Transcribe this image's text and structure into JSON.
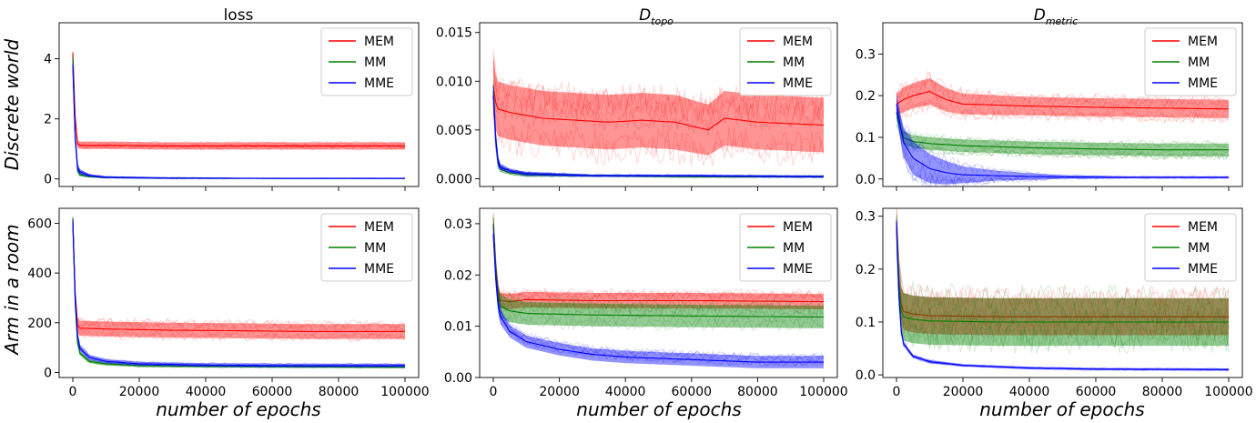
{
  "figure": {
    "x_label": "number of epochs",
    "row_labels": [
      "Discrete world",
      "Arm in a room"
    ],
    "column_titles": [
      {
        "main": "loss",
        "sub": ""
      },
      {
        "main": "D",
        "sub": "topo"
      },
      {
        "main": "D",
        "sub": "metric"
      }
    ],
    "x_ticks": [
      "0",
      "20000",
      "40000",
      "60000",
      "80000",
      "100000"
    ]
  },
  "chart_data": [
    {
      "type": "line",
      "row": 0,
      "col": 0,
      "title": "loss",
      "row_label": "Discrete world",
      "xlabel": "",
      "xlim": [
        0,
        100000
      ],
      "ylim": [
        -0.25,
        5.2
      ],
      "yticks": [
        0,
        2,
        4
      ],
      "ytick_labels": [
        "0",
        "2",
        "4"
      ],
      "legend": "top-right",
      "series": [
        {
          "name": "MEM",
          "color": "#ff0000",
          "x": [
            0,
            1000,
            2000,
            10000,
            30000,
            50000,
            70000,
            100000
          ],
          "y": [
            4.2,
            1.2,
            1.12,
            1.12,
            1.1,
            1.1,
            1.1,
            1.1
          ],
          "band": [
            0.12,
            0.12,
            0.12,
            0.12,
            0.12,
            0.12,
            0.12,
            0.12
          ]
        },
        {
          "name": "MM",
          "color": "#008000",
          "x": [
            0,
            1000,
            2000,
            5000,
            10000,
            30000,
            60000,
            100000
          ],
          "y": [
            4.0,
            0.4,
            0.15,
            0.08,
            0.05,
            0.03,
            0.02,
            0.02
          ],
          "band": [
            0.2,
            0.1,
            0.06,
            0.03,
            0.02,
            0.02,
            0.01,
            0.01
          ]
        },
        {
          "name": "MME",
          "color": "#0000ff",
          "x": [
            0,
            1000,
            2000,
            5000,
            10000,
            30000,
            60000,
            100000
          ],
          "y": [
            3.8,
            0.5,
            0.25,
            0.12,
            0.06,
            0.03,
            0.02,
            0.02
          ],
          "band": [
            0.25,
            0.15,
            0.08,
            0.04,
            0.03,
            0.02,
            0.01,
            0.01
          ]
        }
      ]
    },
    {
      "type": "line",
      "row": 0,
      "col": 1,
      "title": "D topo",
      "xlabel": "",
      "xlim": [
        0,
        100000
      ],
      "ylim": [
        -0.0008,
        0.016
      ],
      "yticks": [
        0,
        0.005,
        0.01,
        0.015
      ],
      "ytick_labels": [
        "0.000",
        "0.005",
        "0.010",
        "0.015"
      ],
      "legend": "top-right",
      "series": [
        {
          "name": "MEM",
          "color": "#ff0000",
          "x": [
            0,
            1000,
            5000,
            15000,
            25000,
            35000,
            45000,
            55000,
            65000,
            70000,
            80000,
            100000
          ],
          "y": [
            0.0095,
            0.0072,
            0.0068,
            0.0062,
            0.006,
            0.0058,
            0.006,
            0.0058,
            0.005,
            0.0062,
            0.0058,
            0.0055
          ],
          "band": [
            0.003,
            0.0028,
            0.0028,
            0.0028,
            0.0028,
            0.0028,
            0.0028,
            0.0028,
            0.0026,
            0.0028,
            0.0028,
            0.0028
          ]
        },
        {
          "name": "MM",
          "color": "#008000",
          "x": [
            0,
            1000,
            2000,
            5000,
            10000,
            30000,
            60000,
            100000
          ],
          "y": [
            0.009,
            0.002,
            0.001,
            0.0006,
            0.0004,
            0.0003,
            0.0002,
            0.0002
          ],
          "band": [
            0.001,
            0.0006,
            0.0003,
            0.0002,
            0.0002,
            0.0001,
            0.0001,
            0.0001
          ]
        },
        {
          "name": "MME",
          "color": "#0000ff",
          "x": [
            0,
            1000,
            2000,
            5000,
            10000,
            30000,
            60000,
            100000
          ],
          "y": [
            0.0085,
            0.0022,
            0.0012,
            0.0008,
            0.0005,
            0.0003,
            0.0003,
            0.0002
          ],
          "band": [
            0.001,
            0.0006,
            0.0003,
            0.0002,
            0.0002,
            0.0001,
            0.0001,
            0.0001
          ]
        }
      ]
    },
    {
      "type": "line",
      "row": 0,
      "col": 2,
      "title": "D metric",
      "xlabel": "",
      "xlim": [
        0,
        100000
      ],
      "ylim": [
        -0.018,
        0.375
      ],
      "yticks": [
        0,
        0.1,
        0.2,
        0.3
      ],
      "ytick_labels": [
        "0.0",
        "0.1",
        "0.2",
        "0.3"
      ],
      "legend": "top-right",
      "series": [
        {
          "name": "MEM",
          "color": "#ff0000",
          "x": [
            0,
            2000,
            5000,
            10000,
            15000,
            20000,
            40000,
            60000,
            80000,
            100000
          ],
          "y": [
            0.18,
            0.19,
            0.2,
            0.21,
            0.19,
            0.18,
            0.175,
            0.172,
            0.17,
            0.168
          ],
          "band": [
            0.025,
            0.03,
            0.03,
            0.032,
            0.028,
            0.025,
            0.022,
            0.022,
            0.022,
            0.022
          ]
        },
        {
          "name": "MM",
          "color": "#008000",
          "x": [
            0,
            2000,
            5000,
            10000,
            20000,
            40000,
            60000,
            80000,
            100000
          ],
          "y": [
            0.16,
            0.1,
            0.09,
            0.085,
            0.08,
            0.075,
            0.072,
            0.07,
            0.07
          ],
          "band": [
            0.02,
            0.015,
            0.015,
            0.015,
            0.015,
            0.015,
            0.015,
            0.015,
            0.015
          ]
        },
        {
          "name": "MME",
          "color": "#0000ff",
          "x": [
            0,
            2000,
            5000,
            10000,
            15000,
            20000,
            30000,
            40000,
            50000,
            70000,
            100000
          ],
          "y": [
            0.18,
            0.09,
            0.05,
            0.025,
            0.015,
            0.01,
            0.008,
            0.006,
            0.005,
            0.004,
            0.004
          ],
          "band": [
            0.02,
            0.035,
            0.04,
            0.035,
            0.028,
            0.02,
            0.012,
            0.008,
            0.004,
            0.002,
            0.002
          ]
        }
      ]
    },
    {
      "type": "line",
      "row": 1,
      "col": 0,
      "title": "",
      "row_label": "Arm in a room",
      "xlabel": "number of epochs",
      "xlim": [
        0,
        100000
      ],
      "ylim": [
        -20,
        660
      ],
      "yticks": [
        0,
        200,
        400,
        600
      ],
      "ytick_labels": [
        "0",
        "200",
        "400",
        "600"
      ],
      "legend": "top-right",
      "series": [
        {
          "name": "MEM",
          "color": "#ff0000",
          "x": [
            0,
            1000,
            2000,
            10000,
            30000,
            50000,
            70000,
            100000
          ],
          "y": [
            600,
            200,
            178,
            175,
            170,
            168,
            165,
            165
          ],
          "band": [
            30,
            30,
            30,
            30,
            30,
            30,
            30,
            30
          ]
        },
        {
          "name": "MM",
          "color": "#008000",
          "x": [
            0,
            1000,
            2000,
            5000,
            10000,
            20000,
            40000,
            60000,
            100000
          ],
          "y": [
            620,
            150,
            80,
            45,
            35,
            28,
            25,
            24,
            22
          ],
          "band": [
            10,
            10,
            8,
            6,
            5,
            5,
            4,
            4,
            4
          ]
        },
        {
          "name": "MME",
          "color": "#0000ff",
          "x": [
            0,
            1000,
            2000,
            5000,
            10000,
            20000,
            40000,
            60000,
            100000
          ],
          "y": [
            610,
            180,
            100,
            60,
            45,
            35,
            30,
            28,
            28
          ],
          "band": [
            15,
            15,
            12,
            10,
            8,
            7,
            7,
            7,
            7
          ]
        }
      ]
    },
    {
      "type": "line",
      "row": 1,
      "col": 1,
      "title": "",
      "xlabel": "number of epochs",
      "xlim": [
        0,
        100000
      ],
      "ylim": [
        0,
        0.033
      ],
      "yticks": [
        0,
        0.01,
        0.02,
        0.03
      ],
      "ytick_labels": [
        "0.00",
        "0.01",
        "0.02",
        "0.03"
      ],
      "legend": "top-right",
      "series": [
        {
          "name": "MEM",
          "color": "#ff0000",
          "x": [
            0,
            1000,
            2000,
            5000,
            10000,
            30000,
            60000,
            100000
          ],
          "y": [
            0.03,
            0.018,
            0.015,
            0.0148,
            0.0152,
            0.015,
            0.015,
            0.0148
          ],
          "band": [
            0.0015,
            0.0015,
            0.0015,
            0.0015,
            0.0015,
            0.0015,
            0.0015,
            0.0015
          ]
        },
        {
          "name": "MM",
          "color": "#008000",
          "x": [
            0,
            1000,
            2000,
            5000,
            10000,
            30000,
            60000,
            100000
          ],
          "y": [
            0.03,
            0.017,
            0.014,
            0.013,
            0.0125,
            0.0122,
            0.012,
            0.0118
          ],
          "band": [
            0.002,
            0.0022,
            0.0022,
            0.0022,
            0.0022,
            0.0022,
            0.0022,
            0.0022
          ]
        },
        {
          "name": "MME",
          "color": "#0000ff",
          "x": [
            0,
            1000,
            2000,
            5000,
            10000,
            20000,
            30000,
            40000,
            60000,
            80000,
            100000
          ],
          "y": [
            0.028,
            0.016,
            0.012,
            0.009,
            0.007,
            0.0055,
            0.0045,
            0.004,
            0.0035,
            0.003,
            0.003
          ],
          "band": [
            0.0015,
            0.0015,
            0.0015,
            0.0012,
            0.0012,
            0.0012,
            0.0012,
            0.0012,
            0.0012,
            0.0012,
            0.0012
          ]
        }
      ]
    },
    {
      "type": "line",
      "row": 1,
      "col": 2,
      "title": "",
      "xlabel": "number of epochs",
      "xlim": [
        0,
        100000
      ],
      "ylim": [
        -0.005,
        0.315
      ],
      "yticks": [
        0,
        0.1,
        0.2,
        0.3
      ],
      "ytick_labels": [
        "0.0",
        "0.1",
        "0.2",
        "0.3"
      ],
      "legend": "top-right",
      "series": [
        {
          "name": "MEM",
          "color": "#ff0000",
          "x": [
            0,
            1000,
            2000,
            5000,
            10000,
            30000,
            60000,
            100000
          ],
          "y": [
            0.28,
            0.14,
            0.12,
            0.115,
            0.112,
            0.11,
            0.11,
            0.11
          ],
          "band": [
            0.03,
            0.035,
            0.035,
            0.035,
            0.035,
            0.035,
            0.035,
            0.035
          ]
        },
        {
          "name": "MM",
          "color": "#008000",
          "x": [
            0,
            1000,
            2000,
            5000,
            10000,
            30000,
            60000,
            100000
          ],
          "y": [
            0.28,
            0.13,
            0.11,
            0.105,
            0.102,
            0.1,
            0.1,
            0.1
          ],
          "band": [
            0.04,
            0.045,
            0.045,
            0.045,
            0.045,
            0.045,
            0.045,
            0.045
          ]
        },
        {
          "name": "MME",
          "color": "#0000ff",
          "x": [
            0,
            1000,
            2000,
            5000,
            10000,
            20000,
            40000,
            60000,
            100000
          ],
          "y": [
            0.29,
            0.1,
            0.06,
            0.035,
            0.025,
            0.018,
            0.013,
            0.011,
            0.01
          ],
          "band": [
            0.006,
            0.005,
            0.004,
            0.003,
            0.003,
            0.002,
            0.002,
            0.002,
            0.002
          ]
        }
      ]
    }
  ]
}
